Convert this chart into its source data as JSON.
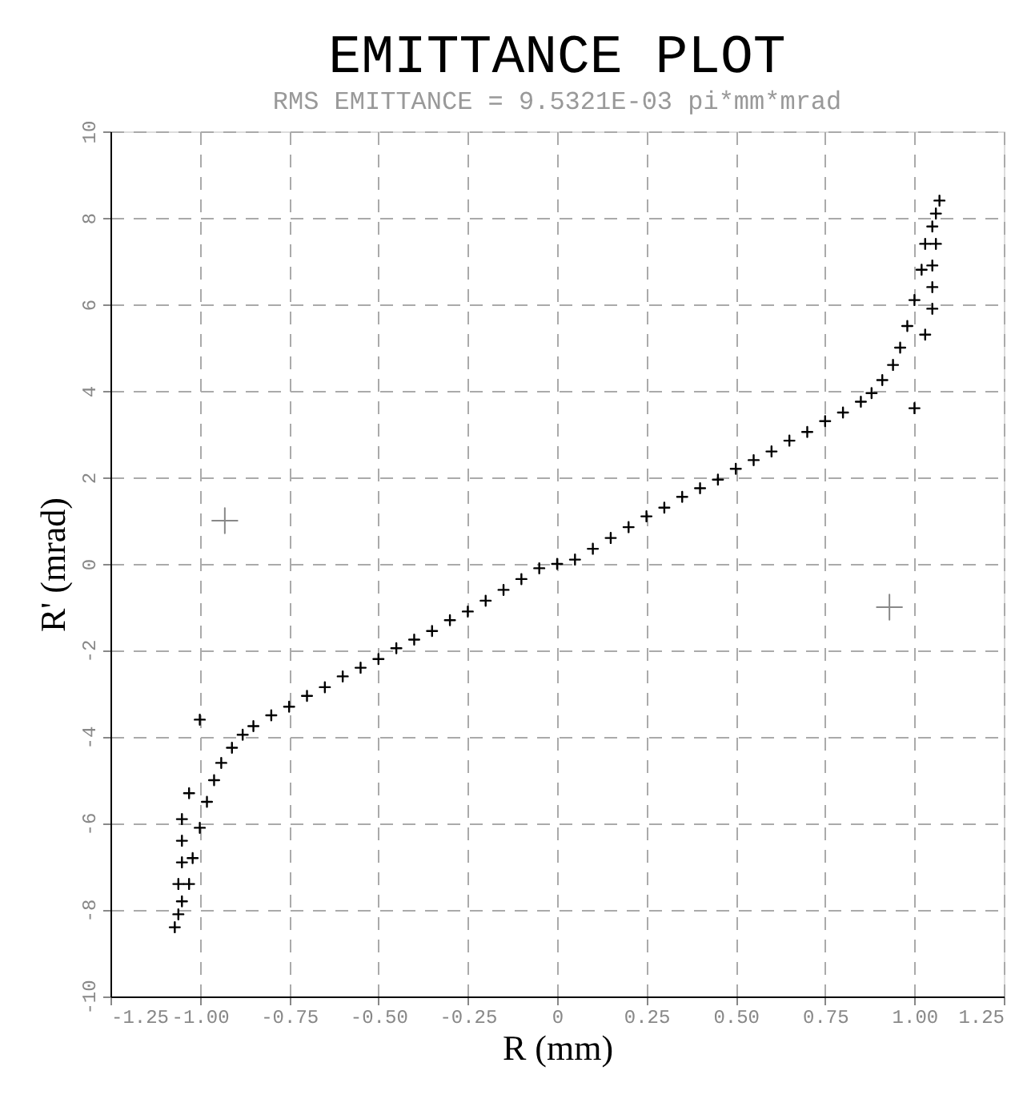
{
  "chart_data": {
    "type": "scatter",
    "title": "EMITTANCE PLOT",
    "subtitle": "RMS EMITTANCE =  9.5321E-03 pi*mm*mrad",
    "xlabel": "R  (mm)",
    "ylabel": "R' (mrad)",
    "xlim": [
      -1.25,
      1.25
    ],
    "ylim": [
      -10,
      10
    ],
    "xticks": [
      {
        "value": -1.25,
        "label": "-1.25"
      },
      {
        "value": -1,
        "label": "-1.00"
      },
      {
        "value": -0.75,
        "label": "-0.75"
      },
      {
        "value": -0.5,
        "label": "-0.50"
      },
      {
        "value": -0.25,
        "label": "-0.25"
      },
      0,
      {
        "value": 0.25,
        "label": "0.25"
      },
      {
        "value": 0.5,
        "label": "0.50"
      },
      {
        "value": 0.75,
        "label": "0.75"
      },
      {
        "value": 1,
        "label": "1.00"
      },
      {
        "value": 1.25,
        "label": "1.25"
      }
    ],
    "yticks": [
      -10,
      -8,
      -6,
      -4,
      -2,
      0,
      2,
      4,
      6,
      8,
      10
    ],
    "grid": true,
    "marker": "cross",
    "series": [
      {
        "color": "#000000",
        "x": [
          -1.07,
          -1.06,
          -1.05,
          -1.03,
          -1.02,
          -1.0,
          -0.98,
          -0.96,
          -0.94,
          -0.91,
          -0.88,
          -0.85,
          -0.8,
          -0.75,
          -0.7,
          -0.65,
          -0.6,
          -0.55,
          -0.5,
          -0.45,
          -0.4,
          -0.35,
          -0.3,
          -0.25,
          -0.2,
          -0.15,
          -0.1,
          -0.05,
          0.0,
          0.05,
          0.1,
          0.15,
          0.2,
          0.25,
          0.3,
          0.35,
          0.4,
          0.45,
          0.5,
          0.55,
          0.6,
          0.65,
          0.7,
          0.75,
          0.8,
          0.85,
          0.88,
          0.91,
          0.94,
          0.96,
          0.98,
          1.0,
          1.02,
          1.03,
          1.05,
          1.06,
          1.07,
          -1.03,
          -1.0,
          -1.05,
          -1.05,
          -1.05,
          -1.06,
          1.03,
          1.0,
          1.05,
          1.05,
          1.05,
          1.06
        ],
        "values": [
          -8.4,
          -8.1,
          -7.8,
          -7.4,
          -6.8,
          -6.1,
          -5.5,
          -5.0,
          -4.6,
          -4.25,
          -3.95,
          -3.75,
          -3.5,
          -3.3,
          -3.05,
          -2.85,
          -2.6,
          -2.4,
          -2.2,
          -1.95,
          -1.75,
          -1.55,
          -1.3,
          -1.1,
          -0.85,
          -0.6,
          -0.35,
          -0.1,
          0.0,
          0.1,
          0.35,
          0.6,
          0.85,
          1.1,
          1.3,
          1.55,
          1.75,
          1.95,
          2.2,
          2.4,
          2.6,
          2.85,
          3.05,
          3.3,
          3.5,
          3.75,
          3.95,
          4.25,
          4.6,
          5.0,
          5.5,
          6.1,
          6.8,
          7.4,
          7.8,
          8.1,
          8.4,
          -5.3,
          -3.6,
          -5.9,
          -6.4,
          -6.9,
          -7.4,
          5.3,
          3.6,
          5.9,
          6.4,
          6.9,
          7.4
        ]
      },
      {
        "color": "#888888",
        "x": [
          -0.93,
          0.93
        ],
        "values": [
          1,
          -1
        ]
      }
    ]
  }
}
